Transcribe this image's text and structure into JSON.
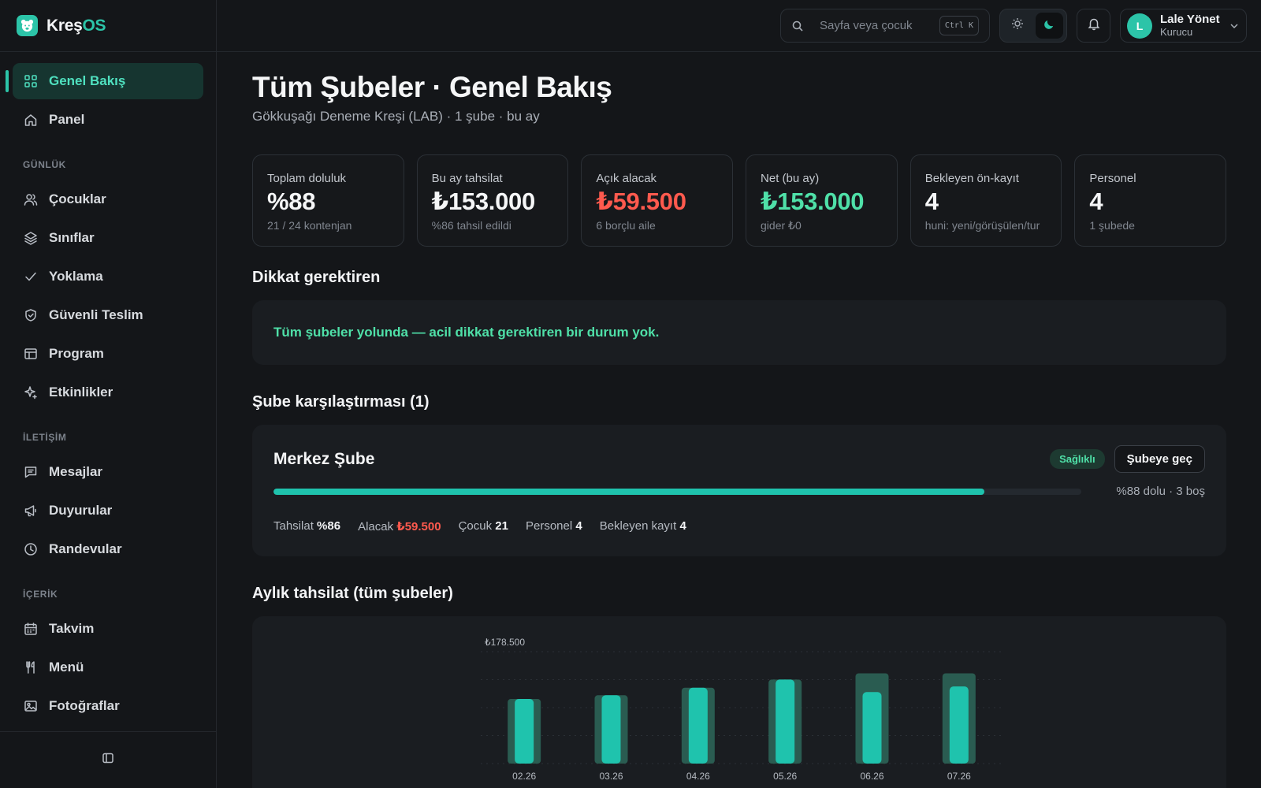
{
  "brand": {
    "name_main": "Kreş",
    "name_accent": "OS"
  },
  "sidebar": {
    "top_items": [
      {
        "label": "Genel Bakış",
        "icon": "grid-icon",
        "active": true
      },
      {
        "label": "Panel",
        "icon": "home-icon"
      }
    ],
    "sections": [
      {
        "title": "GÜNLÜK",
        "items": [
          {
            "label": "Çocuklar",
            "icon": "users-icon"
          },
          {
            "label": "Sınıflar",
            "icon": "layers-icon"
          },
          {
            "label": "Yoklama",
            "icon": "check-icon"
          },
          {
            "label": "Güvenli Teslim",
            "icon": "shield-icon"
          },
          {
            "label": "Program",
            "icon": "table-icon"
          },
          {
            "label": "Etkinlikler",
            "icon": "sparkle-icon"
          }
        ]
      },
      {
        "title": "İLETİŞİM",
        "items": [
          {
            "label": "Mesajlar",
            "icon": "message-icon"
          },
          {
            "label": "Duyurular",
            "icon": "megaphone-icon"
          },
          {
            "label": "Randevular",
            "icon": "clock-icon"
          }
        ]
      },
      {
        "title": "İÇERİK",
        "items": [
          {
            "label": "Takvim",
            "icon": "calendar-icon"
          },
          {
            "label": "Menü",
            "icon": "utensils-icon"
          },
          {
            "label": "Fotoğraflar",
            "icon": "image-icon"
          }
        ]
      }
    ]
  },
  "topbar": {
    "search_placeholder": "Sayfa veya çocuk",
    "shortcut": "Ctrl K",
    "user": {
      "initial": "L",
      "name": "Lale Yönet",
      "role": "Kurucu"
    }
  },
  "header": {
    "title": "Tüm Şubeler · Genel Bakış",
    "subtitle": "Gökkuşağı Deneme Kreşi (LAB) · 1 şube · bu ay"
  },
  "kpis": [
    {
      "label": "Toplam doluluk",
      "value": "%88",
      "hint": "21 / 24 kontenjan",
      "tone": ""
    },
    {
      "label": "Bu ay tahsilat",
      "value": "₺153.000",
      "hint": "%86 tahsil edildi",
      "tone": ""
    },
    {
      "label": "Açık alacak",
      "value": "₺59.500",
      "hint": "6 borçlu aile",
      "tone": "red"
    },
    {
      "label": "Net (bu ay)",
      "value": "₺153.000",
      "hint": "gider ₺0",
      "tone": "green"
    },
    {
      "label": "Bekleyen ön-kayıt",
      "value": "4",
      "hint": "huni: yeni/görüşülen/tur",
      "tone": ""
    },
    {
      "label": "Personel",
      "value": "4",
      "hint": "1 şubede",
      "tone": ""
    }
  ],
  "attention": {
    "title": "Dikkat gerektiren",
    "message": "Tüm şubeler yolunda — acil dikkat gerektiren bir durum yok."
  },
  "comparison": {
    "title": "Şube karşılaştırması (1)",
    "branch": {
      "name": "Merkez Şube",
      "badge": "Sağlıklı",
      "button": "Şubeye geç",
      "occupancy_fraction": 0.88,
      "occupancy_text": "%88 dolu · 3 boş",
      "stats": [
        {
          "label": "Tahsilat",
          "value": "%86",
          "tone": ""
        },
        {
          "label": "Alacak",
          "value": "₺59.500",
          "tone": "red"
        },
        {
          "label": "Çocuk",
          "value": "21",
          "tone": ""
        },
        {
          "label": "Personel",
          "value": "4",
          "tone": ""
        },
        {
          "label": "Bekleyen kayıt",
          "value": "4",
          "tone": ""
        }
      ]
    }
  },
  "monthly": {
    "title": "Aylık tahsilat (tüm şubeler)"
  },
  "chart_data": {
    "type": "bar",
    "categories": [
      "02.26",
      "03.26",
      "04.26",
      "05.26",
      "06.26",
      "07.26"
    ],
    "series": [
      {
        "values": [
          103000,
          109000,
          121000,
          134000,
          114000,
          123000
        ]
      },
      {
        "values": [
          103000,
          109000,
          121000,
          134000,
          144000,
          144000
        ]
      }
    ],
    "max_label": "₺178.500",
    "ylim": [
      0,
      178500
    ],
    "grid": true,
    "colors": {
      "collected": "#1fc3ad",
      "expected": "#2a5c51"
    }
  }
}
